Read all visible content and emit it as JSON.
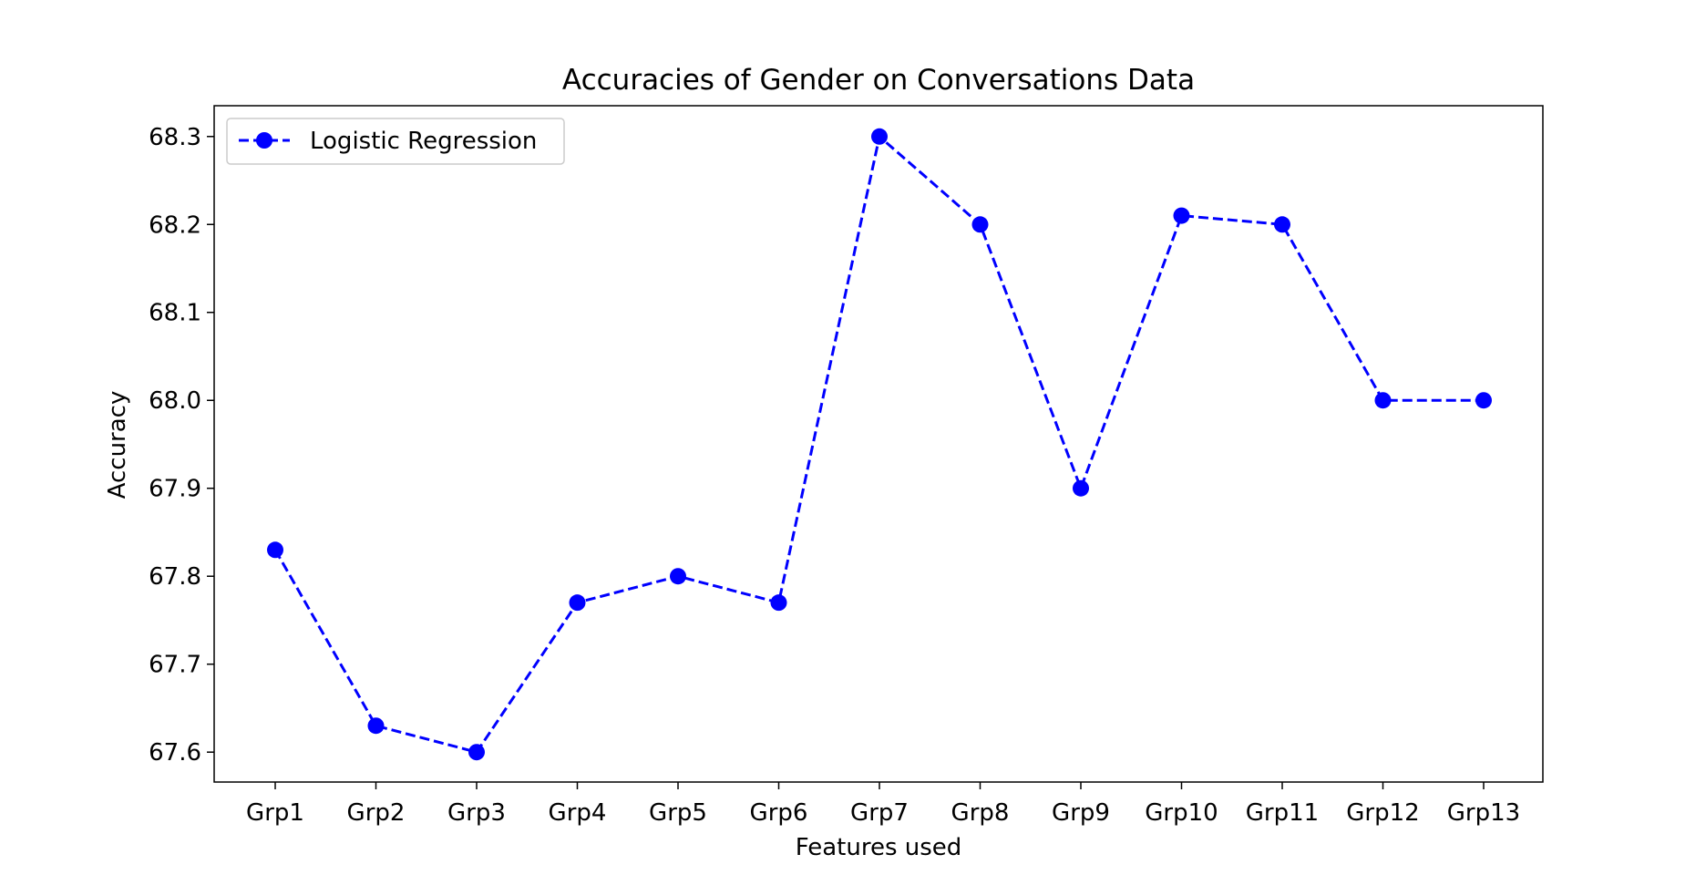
{
  "chart_data": {
    "type": "line",
    "title": "Accuracies of Gender on Conversations Data",
    "xlabel": "Features used",
    "ylabel": "Accuracy",
    "categories": [
      "Grp1",
      "Grp2",
      "Grp3",
      "Grp4",
      "Grp5",
      "Grp6",
      "Grp7",
      "Grp8",
      "Grp9",
      "Grp10",
      "Grp11",
      "Grp12",
      "Grp13"
    ],
    "series": [
      {
        "name": "Logistic Regression",
        "color": "#0000ff",
        "line_style": "dashed",
        "marker": "circle",
        "values": [
          67.83,
          67.63,
          67.6,
          67.77,
          67.8,
          67.77,
          68.3,
          68.2,
          67.9,
          68.21,
          68.2,
          68.0,
          68.0
        ]
      }
    ],
    "ylim": [
      67.566,
      68.335
    ],
    "yticks": [
      "67.6",
      "67.7",
      "67.8",
      "67.9",
      "68.0",
      "68.1",
      "68.2",
      "68.3"
    ],
    "grid": false,
    "legend_position": "upper left"
  }
}
